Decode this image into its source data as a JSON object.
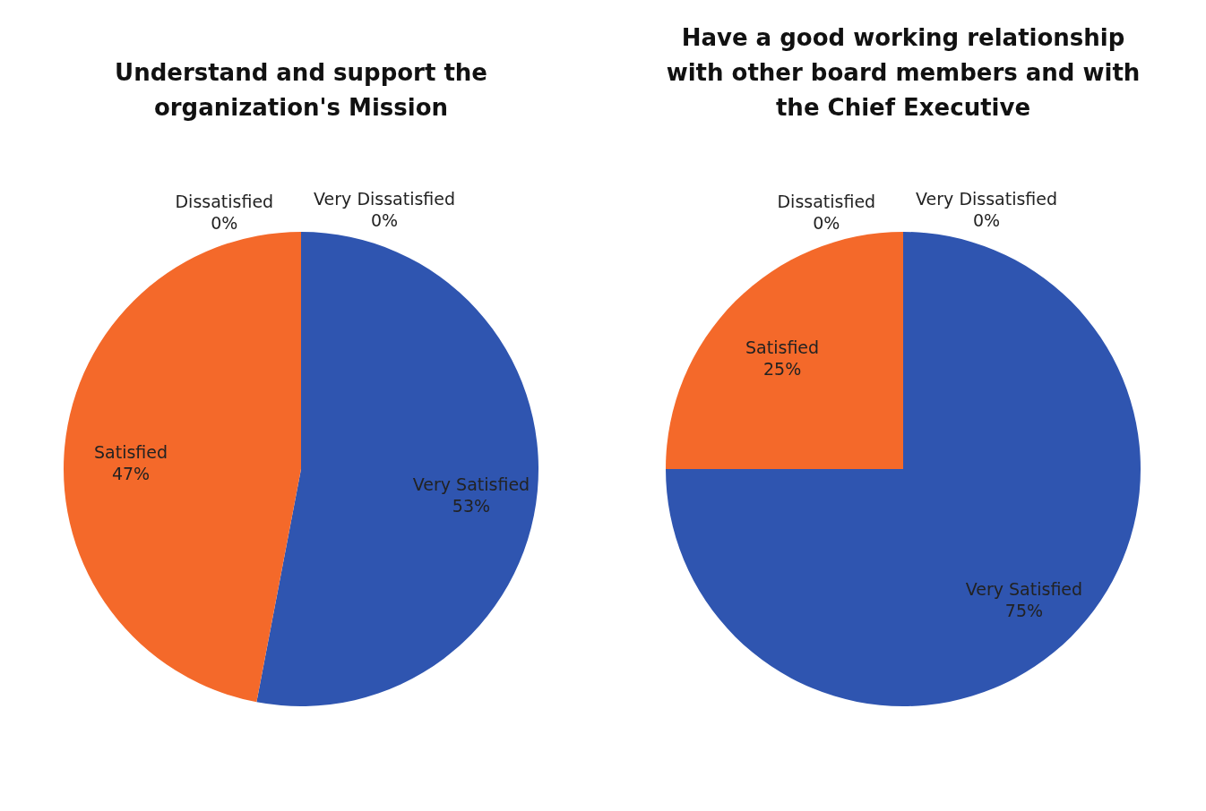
{
  "chart_data": [
    {
      "type": "pie",
      "title": "Understand and support the organization's Mission",
      "categories": [
        "Very Satisfied",
        "Satisfied",
        "Dissatisfied",
        "Very Dissatisfied"
      ],
      "values": [
        53,
        47,
        0,
        0
      ],
      "colors": [
        "#2f55b0",
        "#f4692a",
        "#a5a5a5",
        "#ffc000"
      ],
      "value_labels": [
        "53%",
        "47%",
        "0%",
        "0%"
      ]
    },
    {
      "type": "pie",
      "title": "Have a good working relationship with other board members and with the Chief Executive",
      "categories": [
        "Very Satisfied",
        "Satisfied",
        "Dissatisfied",
        "Very Dissatisfied"
      ],
      "values": [
        75,
        25,
        0,
        0
      ],
      "colors": [
        "#2f55b0",
        "#f4692a",
        "#a5a5a5",
        "#ffc000"
      ],
      "value_labels": [
        "75%",
        "25%",
        "0%",
        "0%"
      ]
    }
  ]
}
